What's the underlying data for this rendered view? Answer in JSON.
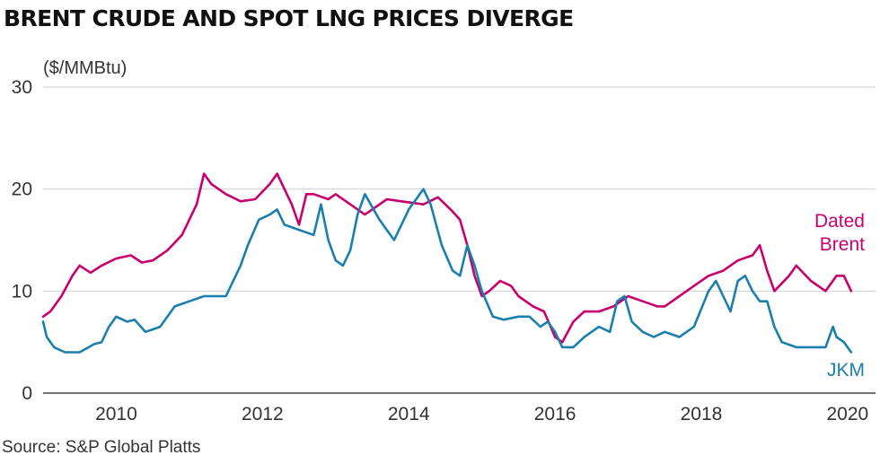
{
  "title": "BRENT CRUDE AND SPOT LNG PRICES DIVERGE",
  "source": "Source: S&P Global Platts",
  "chart_data": {
    "type": "line",
    "title": "BRENT CRUDE AND SPOT LNG PRICES DIVERGE",
    "unit_label": "($/MMBtu)",
    "xlabel": "",
    "ylabel": "",
    "xlim": [
      2009.0,
      2020.1
    ],
    "ylim": [
      0,
      30
    ],
    "x_ticks": [
      2010,
      2012,
      2014,
      2016,
      2018,
      2020
    ],
    "x_tick_labels": [
      "2010",
      "2012",
      "2014",
      "2016",
      "2018",
      "2020"
    ],
    "y_ticks": [
      0,
      10,
      20,
      30
    ],
    "y_tick_labels": [
      "0",
      "10",
      "20",
      "30"
    ],
    "grid": "horizontal",
    "legend": "direct labels at right end of lines",
    "series": [
      {
        "name": "Dated Brent",
        "label_lines": [
          "Dated",
          "Brent"
        ],
        "color": "#c8006e",
        "x": [
          2009.0,
          2009.1,
          2009.25,
          2009.4,
          2009.5,
          2009.65,
          2009.8,
          2010.0,
          2010.2,
          2010.35,
          2010.5,
          2010.7,
          2010.9,
          2011.1,
          2011.2,
          2011.3,
          2011.5,
          2011.7,
          2011.9,
          2012.1,
          2012.2,
          2012.4,
          2012.5,
          2012.6,
          2012.7,
          2012.9,
          2013.0,
          2013.2,
          2013.4,
          2013.5,
          2013.7,
          2013.9,
          2014.0,
          2014.2,
          2014.4,
          2014.5,
          2014.6,
          2014.7,
          2014.8,
          2014.9,
          2015.0,
          2015.1,
          2015.25,
          2015.4,
          2015.5,
          2015.7,
          2015.85,
          2016.0,
          2016.1,
          2016.25,
          2016.4,
          2016.6,
          2016.8,
          2017.0,
          2017.2,
          2017.4,
          2017.5,
          2017.7,
          2017.9,
          2018.1,
          2018.3,
          2018.5,
          2018.7,
          2018.8,
          2018.9,
          2019.0,
          2019.2,
          2019.3,
          2019.5,
          2019.7,
          2019.85,
          2019.95,
          2020.05
        ],
        "values": [
          7.5,
          8.0,
          9.5,
          11.5,
          12.5,
          11.8,
          12.5,
          13.2,
          13.5,
          12.8,
          13.0,
          14.0,
          15.5,
          18.5,
          21.5,
          20.5,
          19.5,
          18.8,
          19.0,
          20.5,
          21.5,
          18.5,
          16.5,
          19.5,
          19.5,
          19.0,
          19.5,
          18.5,
          17.5,
          18.0,
          19.0,
          18.8,
          18.7,
          18.5,
          19.2,
          18.5,
          17.8,
          17.0,
          14.5,
          11.5,
          9.5,
          10.0,
          11.0,
          10.5,
          9.5,
          8.5,
          8.0,
          5.5,
          5.0,
          7.0,
          8.0,
          8.0,
          8.5,
          9.5,
          9.0,
          8.5,
          8.5,
          9.5,
          10.5,
          11.5,
          12.0,
          13.0,
          13.5,
          14.5,
          12.0,
          10.0,
          11.5,
          12.5,
          11.0,
          10.0,
          11.5,
          11.5,
          10.0
        ]
      },
      {
        "name": "JKM",
        "label_lines": [
          "JKM"
        ],
        "color": "#1b7fad",
        "x": [
          2009.0,
          2009.05,
          2009.15,
          2009.3,
          2009.5,
          2009.7,
          2009.8,
          2009.9,
          2010.0,
          2010.15,
          2010.25,
          2010.4,
          2010.6,
          2010.8,
          2011.0,
          2011.2,
          2011.3,
          2011.5,
          2011.7,
          2011.8,
          2011.95,
          2012.1,
          2012.2,
          2012.3,
          2012.5,
          2012.7,
          2012.8,
          2012.9,
          2013.0,
          2013.1,
          2013.2,
          2013.3,
          2013.4,
          2013.6,
          2013.8,
          2013.9,
          2014.0,
          2014.1,
          2014.2,
          2014.3,
          2014.45,
          2014.6,
          2014.7,
          2014.8,
          2014.9,
          2015.0,
          2015.15,
          2015.3,
          2015.5,
          2015.65,
          2015.8,
          2015.9,
          2016.0,
          2016.1,
          2016.25,
          2016.4,
          2016.6,
          2016.75,
          2016.85,
          2016.95,
          2017.05,
          2017.2,
          2017.35,
          2017.5,
          2017.7,
          2017.9,
          2018.1,
          2018.2,
          2018.3,
          2018.4,
          2018.5,
          2018.6,
          2018.7,
          2018.8,
          2018.9,
          2019.0,
          2019.1,
          2019.3,
          2019.5,
          2019.6,
          2019.7,
          2019.8,
          2019.85,
          2019.95,
          2020.05
        ],
        "values": [
          7.0,
          5.5,
          4.5,
          4.0,
          4.0,
          4.8,
          5.0,
          6.5,
          7.5,
          7.0,
          7.2,
          6.0,
          6.5,
          8.5,
          9.0,
          9.5,
          9.5,
          9.5,
          12.5,
          14.5,
          17.0,
          17.5,
          18.0,
          16.5,
          16.0,
          15.5,
          18.5,
          15.0,
          13.0,
          12.5,
          14.0,
          17.5,
          19.5,
          17.0,
          15.0,
          16.5,
          18.0,
          19.0,
          20.0,
          18.5,
          14.5,
          12.0,
          11.5,
          14.5,
          12.5,
          10.0,
          7.5,
          7.2,
          7.5,
          7.5,
          6.5,
          7.0,
          6.0,
          4.5,
          4.5,
          5.5,
          6.5,
          6.0,
          9.0,
          9.5,
          7.0,
          6.0,
          5.5,
          6.0,
          5.5,
          6.5,
          10.0,
          11.0,
          9.5,
          8.0,
          11.0,
          11.5,
          10.0,
          9.0,
          9.0,
          6.5,
          5.0,
          4.5,
          4.5,
          4.5,
          4.5,
          6.5,
          5.5,
          5.0,
          4.0
        ]
      }
    ]
  }
}
